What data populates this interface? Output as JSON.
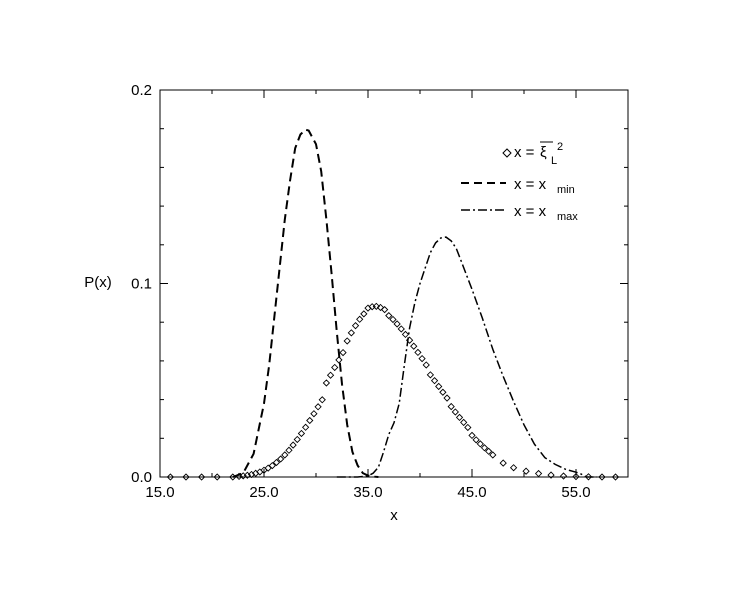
{
  "chart_data": {
    "type": "line",
    "title": "",
    "xlabel": "x",
    "ylabel": "P(x)",
    "xlim": [
      15.0,
      60.0
    ],
    "ylim": [
      0.0,
      0.2
    ],
    "xticks": [
      15.0,
      25.0,
      35.0,
      45.0,
      55.0
    ],
    "xtick_labels": [
      "15.0",
      "25.0",
      "35.0",
      "45.0",
      "55.0"
    ],
    "yticks": [
      0.0,
      0.1,
      0.2
    ],
    "ytick_labels": [
      "0.0",
      "0.1",
      "0.2"
    ],
    "grid": false,
    "legend_placement": "top-right",
    "series": [
      {
        "label_main": "x = ",
        "label_symbol": "ξ",
        "label_sub": "L",
        "label_sup": "2",
        "style": "diamond-markers",
        "color": "#000000",
        "x": [
          16.0,
          17.5,
          19.0,
          20.5,
          22.0,
          22.6,
          23.0,
          23.4,
          23.8,
          24.2,
          24.6,
          25.0,
          25.4,
          25.8,
          26.2,
          26.6,
          27.0,
          27.4,
          27.8,
          28.2,
          28.6,
          29.0,
          29.4,
          29.8,
          30.2,
          30.6,
          31.0,
          31.4,
          31.8,
          32.2,
          32.6,
          33.0,
          33.4,
          33.8,
          34.2,
          34.6,
          35.0,
          35.4,
          35.8,
          36.2,
          36.6,
          37.0,
          37.4,
          37.8,
          38.2,
          38.6,
          39.0,
          39.4,
          39.8,
          40.2,
          40.6,
          41.0,
          41.4,
          41.8,
          42.2,
          42.6,
          43.0,
          43.4,
          43.8,
          44.2,
          44.6,
          45.0,
          45.4,
          45.8,
          46.2,
          46.6,
          47.0,
          48.0,
          49.0,
          50.2,
          51.4,
          52.6,
          53.8,
          55.0,
          56.2,
          57.5,
          58.8
        ],
        "y": [
          0.0,
          0.0,
          0.0,
          0.0,
          0.0,
          0.0003,
          0.0006,
          0.0009,
          0.0013,
          0.0019,
          0.0026,
          0.0035,
          0.0046,
          0.0059,
          0.0075,
          0.0093,
          0.0114,
          0.0138,
          0.0165,
          0.0194,
          0.0225,
          0.0257,
          0.0292,
          0.0327,
          0.0363,
          0.0399,
          0.0486,
          0.0526,
          0.0566,
          0.0605,
          0.0643,
          0.0703,
          0.0745,
          0.0782,
          0.0815,
          0.0843,
          0.0873,
          0.088,
          0.0882,
          0.0876,
          0.0865,
          0.0834,
          0.0814,
          0.0791,
          0.0765,
          0.0737,
          0.0707,
          0.0676,
          0.0644,
          0.0612,
          0.0579,
          0.0528,
          0.0498,
          0.0468,
          0.0438,
          0.0408,
          0.0364,
          0.0336,
          0.0308,
          0.0282,
          0.0256,
          0.0215,
          0.0192,
          0.0171,
          0.0151,
          0.0133,
          0.0114,
          0.0072,
          0.0048,
          0.003,
          0.0018,
          0.001,
          0.0005,
          0.0002,
          0.0001,
          0.0,
          0.0
        ]
      },
      {
        "label_main": "x = x",
        "label_sub": "min",
        "style": "dashed",
        "color": "#000000",
        "x": [
          22.0,
          23.0,
          24.0,
          25.0,
          25.5,
          26.0,
          26.5,
          27.0,
          27.5,
          28.0,
          28.5,
          29.0,
          29.3,
          29.6,
          30.0,
          30.5,
          31.0,
          31.5,
          32.0,
          32.5,
          33.0,
          33.5,
          34.0,
          34.5,
          35.0,
          35.5,
          36.0
        ],
        "y": [
          0.0,
          0.002,
          0.012,
          0.038,
          0.058,
          0.083,
          0.108,
          0.133,
          0.153,
          0.17,
          0.177,
          0.1795,
          0.179,
          0.176,
          0.172,
          0.158,
          0.133,
          0.105,
          0.075,
          0.048,
          0.027,
          0.013,
          0.006,
          0.002,
          0.0008,
          0.0002,
          0.0
        ]
      },
      {
        "label_main": "x = x",
        "label_sub": "max",
        "style": "dash-dot",
        "color": "#000000",
        "x": [
          32.0,
          34.0,
          35.0,
          35.5,
          36.0,
          36.5,
          37.0,
          37.5,
          38.0,
          38.5,
          39.0,
          39.5,
          40.0,
          40.5,
          41.0,
          41.5,
          42.0,
          42.5,
          43.0,
          43.5,
          44.0,
          44.5,
          45.0,
          46.0,
          47.0,
          48.0,
          49.0,
          50.0,
          51.0,
          52.0,
          53.0,
          54.0,
          55.0,
          55.5,
          56.0,
          57.0
        ],
        "y": [
          0.0,
          0.0,
          0.0005,
          0.002,
          0.005,
          0.013,
          0.022,
          0.028,
          0.038,
          0.058,
          0.077,
          0.09,
          0.1,
          0.108,
          0.116,
          0.121,
          0.1235,
          0.124,
          0.122,
          0.118,
          0.111,
          0.104,
          0.097,
          0.082,
          0.066,
          0.052,
          0.039,
          0.027,
          0.017,
          0.01,
          0.0065,
          0.004,
          0.0025,
          0.0015,
          0.0,
          0.0
        ]
      }
    ]
  }
}
